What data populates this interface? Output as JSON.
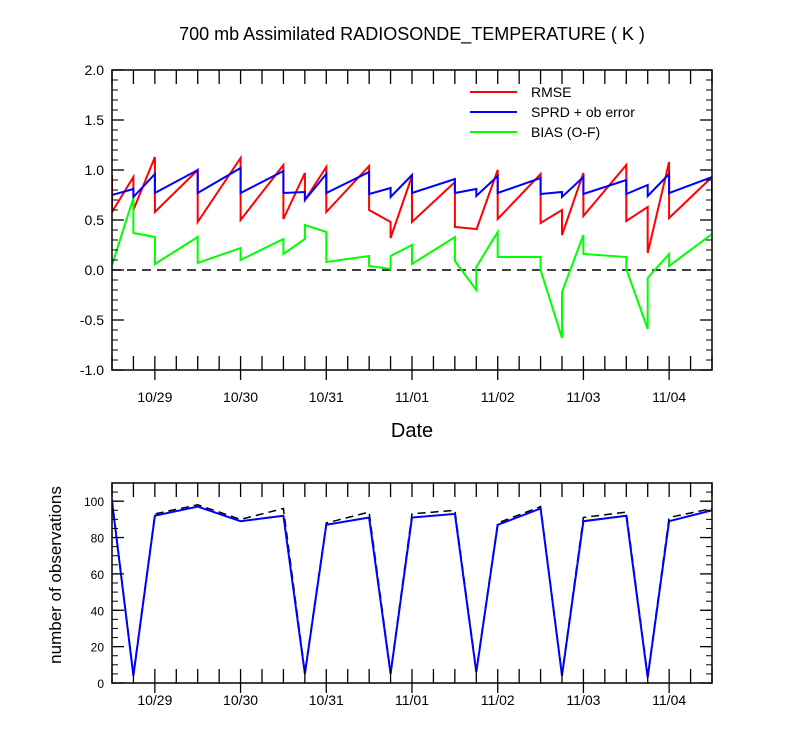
{
  "chart_data": [
    {
      "type": "line",
      "title": "700 mb Assimilated RADIOSONDE_TEMPERATURE ( K )",
      "xlabel": "Date",
      "ylabel": "",
      "x_unit": "days since 10/28 00Z",
      "xlim": [
        0.5,
        7.5
      ],
      "ylim": [
        -1.0,
        2.0
      ],
      "y_ticks": [
        -1.0,
        -0.5,
        0.0,
        0.5,
        1.0,
        1.5,
        2.0
      ],
      "y_tick_labels": [
        "-1.0",
        "-0.5",
        "0.0",
        "0.5",
        "1.0",
        "1.5",
        "2.0"
      ],
      "x_ticks": [
        1,
        2,
        3,
        4,
        5,
        6,
        7
      ],
      "x_tick_labels": [
        "10/29",
        "10/30",
        "10/31",
        "11/01",
        "11/02",
        "11/03",
        "11/04"
      ],
      "zero_line": true,
      "legend_position": "top-right",
      "series": [
        {
          "name": "RMSE",
          "color": "#ff0000",
          "x": [
            0.5,
            0.5,
            0.75,
            0.75,
            1.0,
            1.0,
            1.5,
            1.5,
            2.0,
            2.0,
            2.5,
            2.5,
            2.75,
            2.75,
            3.0,
            3.0,
            3.5,
            3.5,
            3.75,
            3.75,
            4.0,
            4.0,
            4.5,
            4.5,
            4.75,
            4.75,
            5.0,
            5.0,
            5.5,
            5.5,
            5.75,
            5.75,
            6.0,
            6.0,
            6.5,
            6.5,
            6.75,
            6.75,
            7.0,
            7.0,
            7.5,
            7.5
          ],
          "y": [
            0.95,
            0.58,
            0.93,
            0.6,
            1.13,
            0.58,
            1.0,
            0.48,
            1.12,
            0.5,
            1.05,
            0.51,
            0.97,
            0.7,
            1.03,
            0.58,
            1.04,
            0.6,
            0.48,
            0.32,
            0.94,
            0.48,
            0.88,
            0.43,
            0.41,
            0.4,
            1.0,
            0.51,
            0.96,
            0.47,
            0.6,
            0.35,
            0.97,
            0.54,
            1.05,
            0.49,
            0.63,
            0.17,
            1.08,
            0.52,
            0.93,
            0.52
          ]
        },
        {
          "name": "SPRD + ob error",
          "color": "#0000ff",
          "x": [
            0.5,
            0.75,
            0.75,
            1.0,
            1.0,
            1.5,
            1.5,
            2.0,
            2.0,
            2.5,
            2.5,
            2.75,
            2.75,
            3.0,
            3.0,
            3.5,
            3.5,
            3.75,
            3.75,
            4.0,
            4.0,
            4.5,
            4.5,
            4.75,
            4.75,
            5.0,
            5.0,
            5.5,
            5.5,
            5.75,
            5.75,
            6.0,
            6.0,
            6.5,
            6.5,
            6.75,
            6.75,
            7.0,
            7.0,
            7.5
          ],
          "y": [
            0.75,
            0.81,
            0.73,
            0.96,
            0.77,
            1.0,
            0.77,
            1.02,
            0.77,
            0.99,
            0.77,
            0.78,
            0.7,
            0.96,
            0.77,
            0.98,
            0.76,
            0.82,
            0.73,
            0.95,
            0.77,
            0.91,
            0.77,
            0.81,
            0.74,
            0.94,
            0.77,
            0.92,
            0.76,
            0.78,
            0.73,
            0.93,
            0.76,
            0.9,
            0.76,
            0.85,
            0.74,
            0.96,
            0.77,
            0.93
          ]
        },
        {
          "name": "BIAS (O-F)",
          "color": "#00ff00",
          "x": [
            0.5,
            0.75,
            0.75,
            1.0,
            1.0,
            1.5,
            1.5,
            2.0,
            2.0,
            2.5,
            2.5,
            2.75,
            2.75,
            3.0,
            3.0,
            3.5,
            3.5,
            3.75,
            3.75,
            4.0,
            4.0,
            4.5,
            4.5,
            4.75,
            4.75,
            5.0,
            5.0,
            5.5,
            5.5,
            5.75,
            5.75,
            6.0,
            6.0,
            6.5,
            6.5,
            6.75,
            6.75,
            7.0,
            7.0,
            7.5
          ],
          "y": [
            0.05,
            0.72,
            0.37,
            0.33,
            0.06,
            0.33,
            0.07,
            0.22,
            0.1,
            0.31,
            0.16,
            0.31,
            0.45,
            0.38,
            0.08,
            0.14,
            0.04,
            0.01,
            0.14,
            0.25,
            0.06,
            0.33,
            0.09,
            -0.2,
            0.03,
            0.38,
            0.13,
            0.13,
            0.0,
            -0.68,
            -0.22,
            0.35,
            0.16,
            0.13,
            0.01,
            -0.59,
            -0.08,
            0.16,
            0.04,
            0.36
          ]
        }
      ]
    },
    {
      "type": "line",
      "title": "",
      "xlabel": "",
      "ylabel": "number of observations",
      "x_unit": "days since 10/28 00Z",
      "xlim": [
        0.5,
        7.5
      ],
      "ylim": [
        0,
        110
      ],
      "y_ticks": [
        0,
        20,
        40,
        60,
        80,
        100
      ],
      "y_tick_labels": [
        "0",
        "20",
        "40",
        "60",
        "80",
        "100"
      ],
      "x_ticks": [
        1,
        2,
        3,
        4,
        5,
        6,
        7
      ],
      "x_tick_labels": [
        "10/29",
        "10/30",
        "10/31",
        "11/01",
        "11/02",
        "11/03",
        "11/04"
      ],
      "series": [
        {
          "name": "",
          "color": "#000000",
          "dashed": true,
          "x": [
            0.5,
            0.75,
            1.0,
            1.5,
            2.0,
            2.5,
            2.75,
            3.0,
            3.5,
            3.75,
            4.0,
            4.5,
            4.75,
            5.0,
            5.5,
            5.75,
            6.0,
            6.5,
            6.75,
            7.0,
            7.5
          ],
          "y": [
            101,
            5,
            93,
            98,
            90,
            96,
            6,
            88,
            94,
            6,
            93,
            95,
            7,
            88,
            97,
            5,
            91,
            94,
            4,
            91,
            96
          ]
        },
        {
          "name": "",
          "color": "#0000ff",
          "dashed": false,
          "x": [
            0.5,
            0.75,
            1.0,
            1.5,
            2.0,
            2.5,
            2.75,
            3.0,
            3.5,
            3.75,
            4.0,
            4.5,
            4.75,
            5.0,
            5.5,
            5.75,
            6.0,
            6.5,
            6.75,
            7.0,
            7.5
          ],
          "y": [
            100,
            4,
            92,
            97,
            89,
            92,
            5,
            87,
            91,
            5,
            91,
            93,
            6,
            87,
            96,
            4,
            89,
            92,
            3,
            89,
            95
          ]
        }
      ]
    }
  ]
}
